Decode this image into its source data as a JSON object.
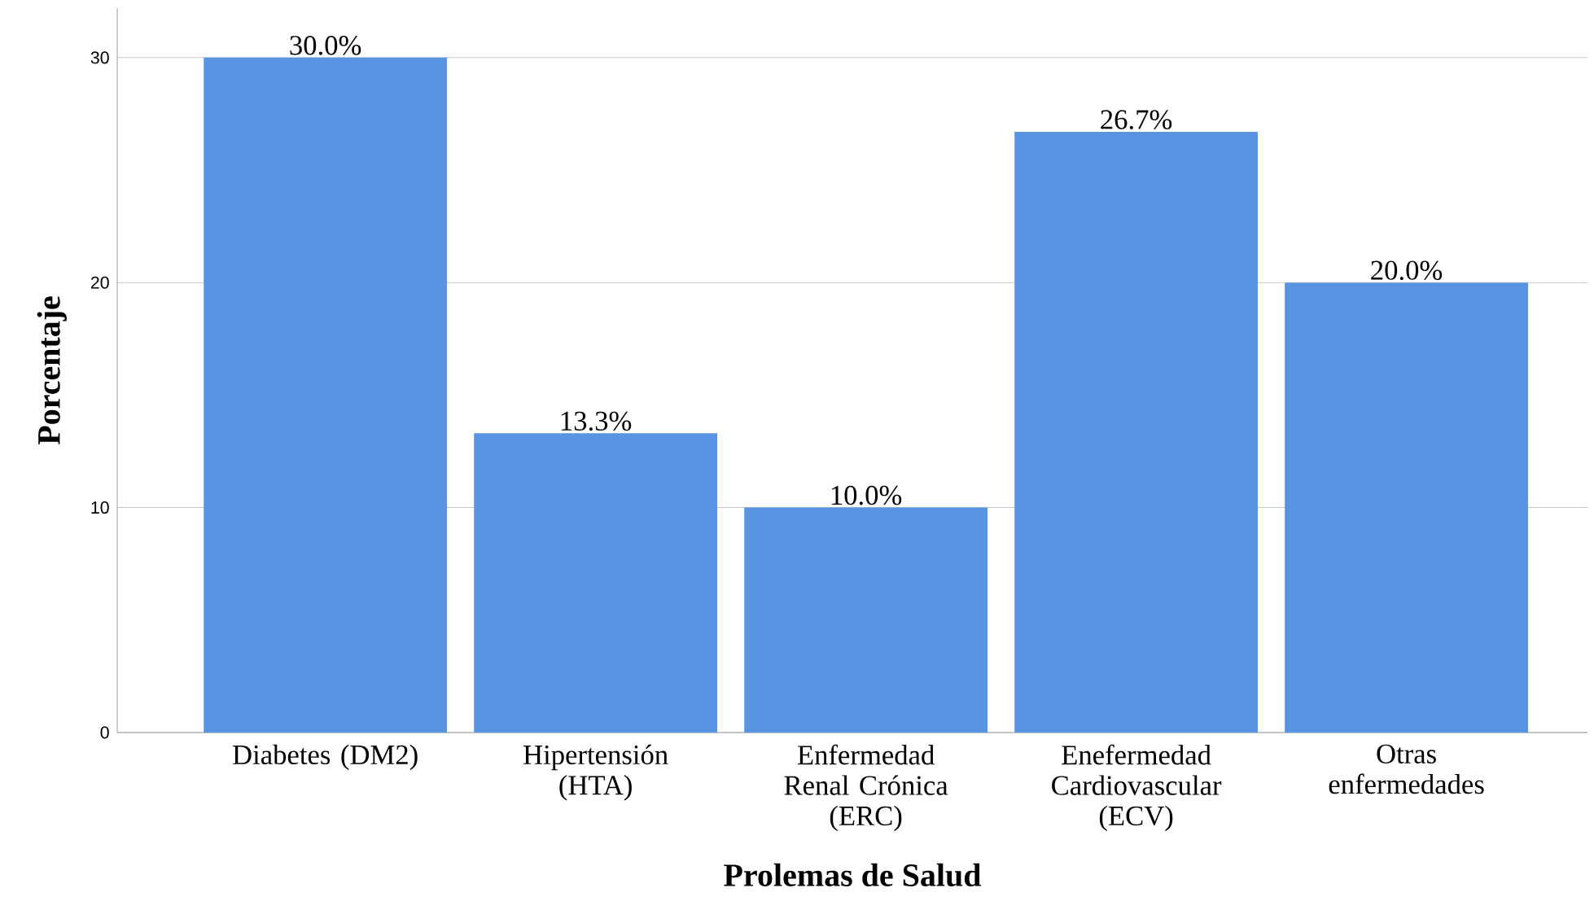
{
  "chart_data": {
    "type": "bar",
    "xlabel": "Prolemas de Salud",
    "ylabel": "Porcentaje",
    "categories": [
      "Diabetes (DM2)",
      "Hipertensión (HTA)",
      "Enfermedad Renal Crónica (ERC)",
      "Enefermedad Cardiovascular (ECV)",
      "Otras enfermedades"
    ],
    "values": [
      30.0,
      13.3,
      10.0,
      26.7,
      20.0
    ],
    "value_labels": [
      "30.0%",
      "13.3%",
      "10.0%",
      "26.7%",
      "20.0%"
    ],
    "color": "#5894e2",
    "ylim": [
      0,
      32.2
    ],
    "yticks": [
      0,
      10,
      20,
      30
    ],
    "grid": "y"
  }
}
